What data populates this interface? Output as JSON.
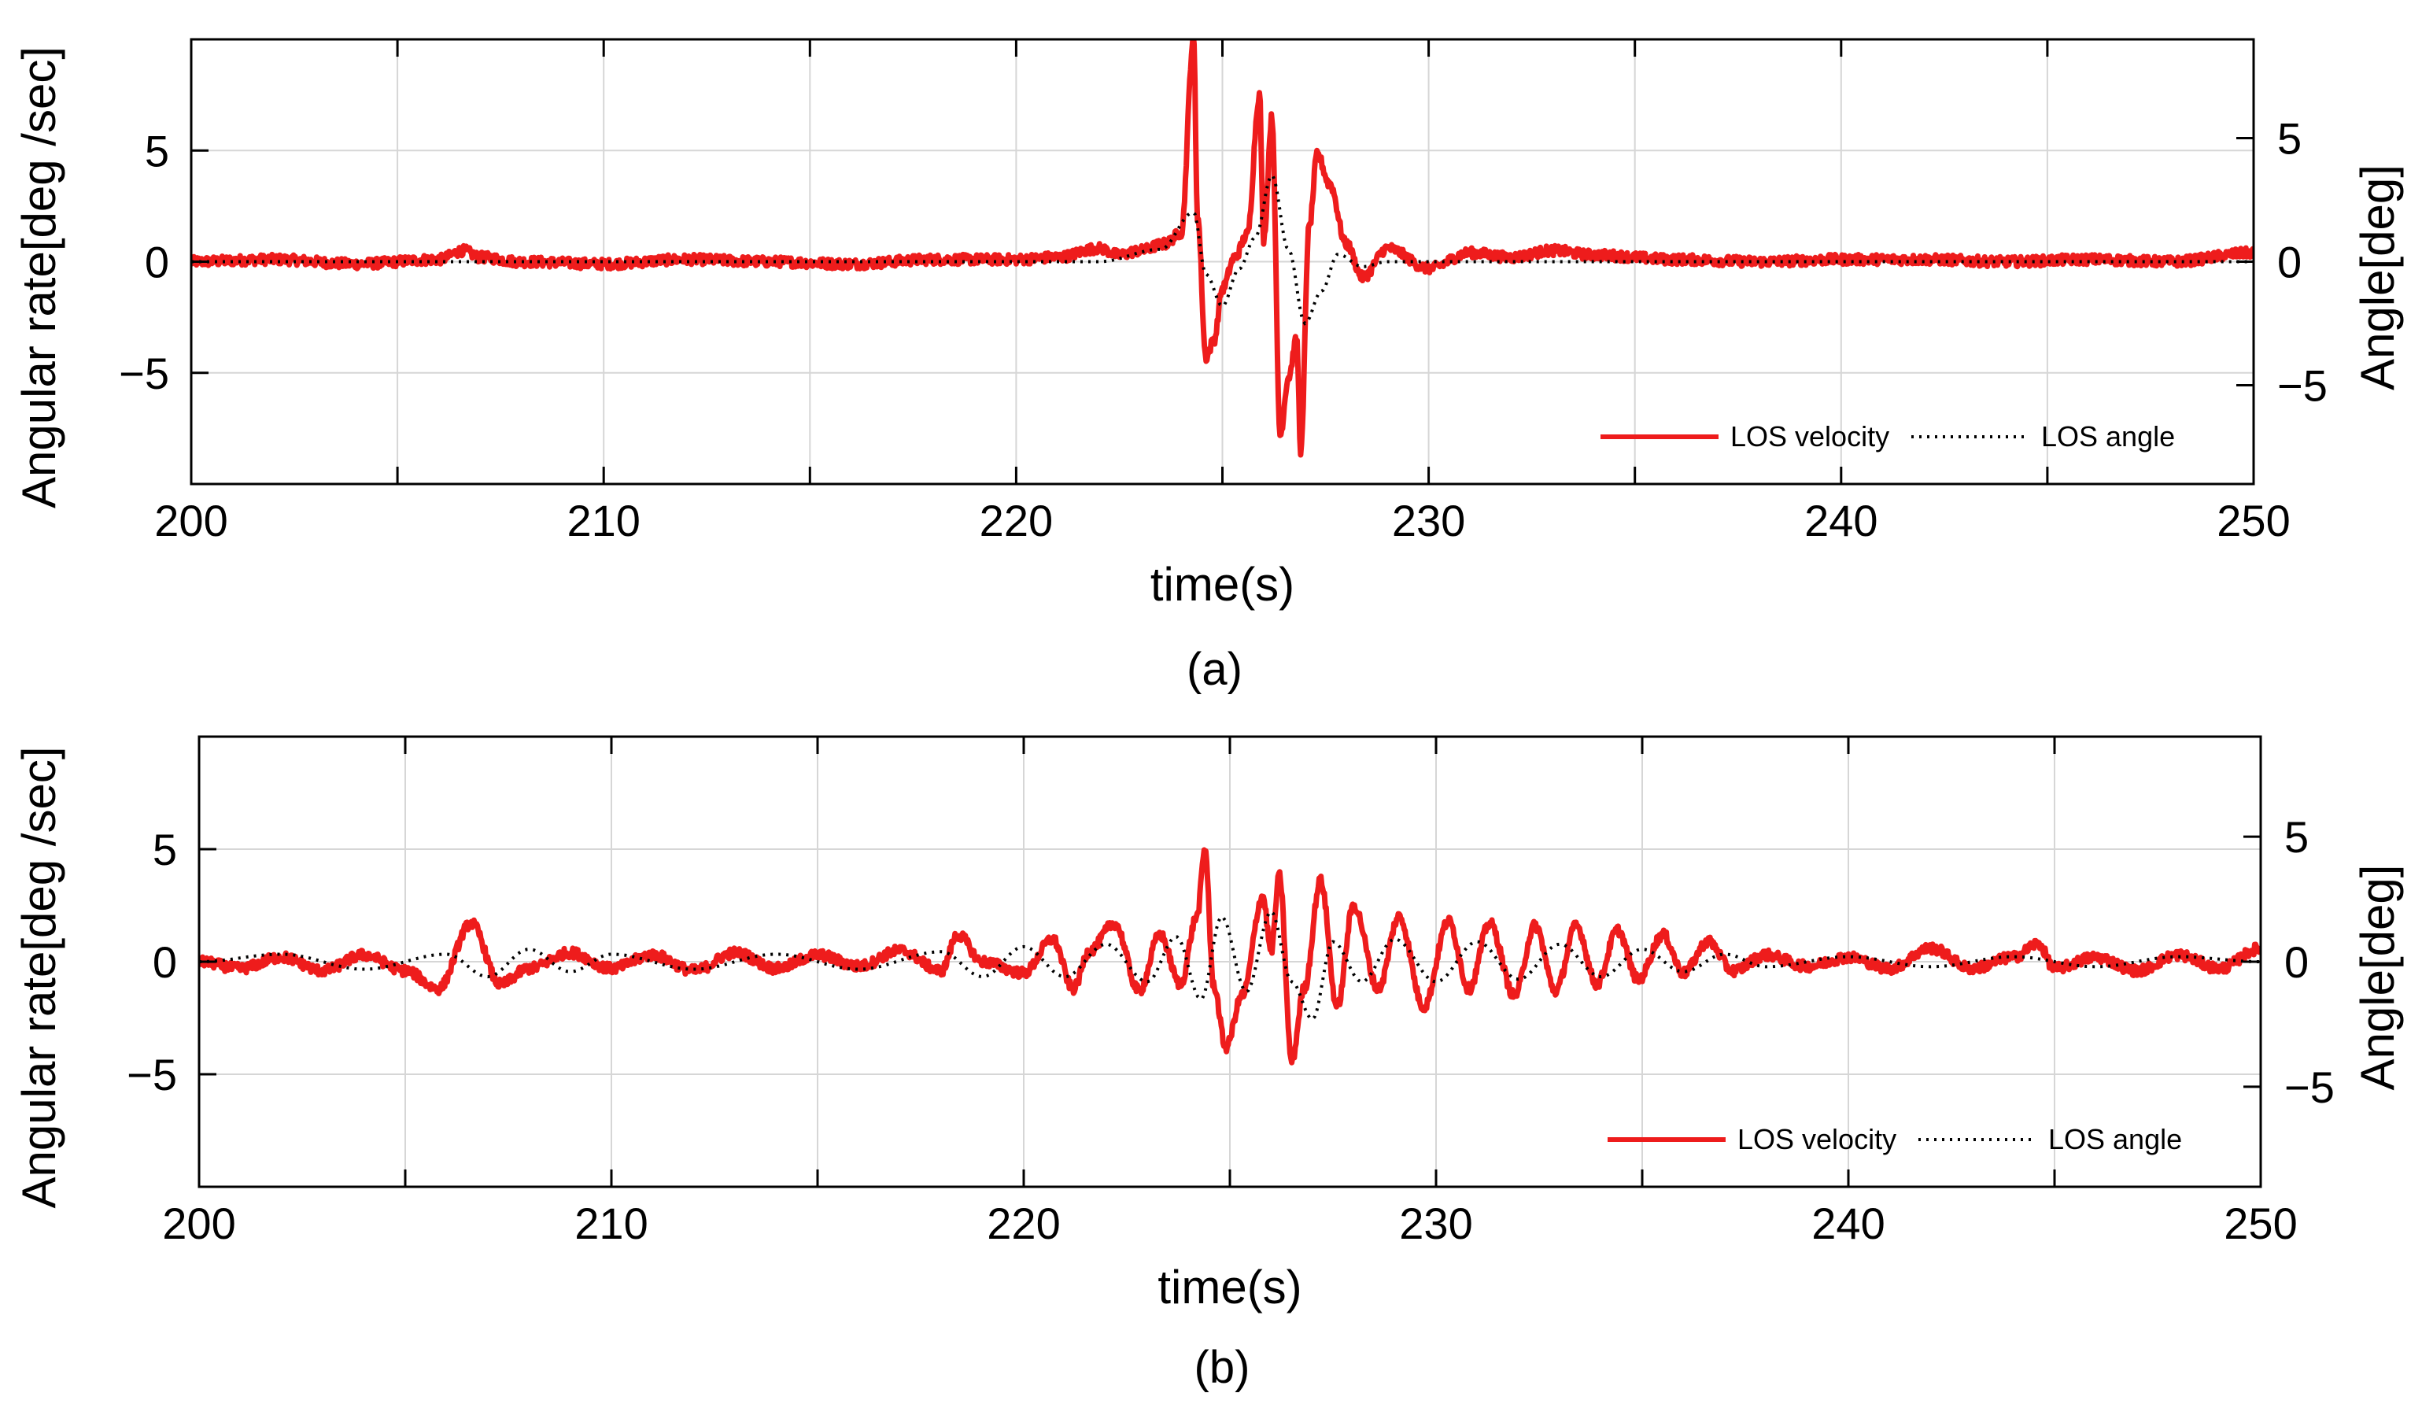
{
  "chart_data": [
    {
      "type": "line",
      "panel_label": "(a)",
      "xlabel": "time(s)",
      "ylabel_left": "Angular rate[deg /sec]",
      "ylabel_right": "Angle[deg]",
      "xlim": [
        200,
        250
      ],
      "ylim_left": [
        -10,
        10
      ],
      "ylim_right": [
        -9,
        9
      ],
      "xticks": [
        200,
        210,
        220,
        230,
        240,
        250
      ],
      "yticks_left": [
        -5,
        0,
        5
      ],
      "yticks_right": [
        -5,
        0,
        5
      ],
      "grid": true,
      "legend_position": "bottom-right",
      "series": [
        {
          "name": "LOS velocity",
          "axis": "left",
          "color": "#ee1c1c",
          "style": "solid",
          "x": [
            200,
            202,
            204,
            206,
            206.6,
            207,
            208,
            210,
            212,
            214,
            216,
            218,
            220,
            221,
            222,
            222.5,
            223,
            223.6,
            224.0,
            224.3,
            224.4,
            224.6,
            224.8,
            225.0,
            225.3,
            225.6,
            225.9,
            226.0,
            226.2,
            226.4,
            226.6,
            226.8,
            226.9,
            227.1,
            227.3,
            227.6,
            228.0,
            228.4,
            229,
            230,
            231,
            232,
            233,
            234,
            236,
            238,
            240,
            242,
            244,
            246,
            248,
            250
          ],
          "values": [
            0,
            0.1,
            -0.1,
            0.1,
            0.5,
            0.2,
            0,
            -0.1,
            0.1,
            0,
            -0.1,
            0.1,
            0.1,
            0.2,
            0.6,
            0.3,
            0.5,
            0.8,
            1.3,
            10,
            2,
            -4.3,
            -3.5,
            -1.2,
            0.2,
            1.2,
            7.5,
            1.0,
            6.5,
            -7.8,
            -5.2,
            -3.5,
            -8.5,
            1.5,
            4.8,
            3.5,
            0.8,
            -0.7,
            0.6,
            -0.3,
            0.4,
            0.2,
            0.5,
            0.3,
            0.1,
            0,
            0.1,
            0.1,
            0,
            0.1,
            0,
            0.4
          ]
        },
        {
          "name": "LOS angle",
          "axis": "right",
          "color": "#000000",
          "style": "dotted",
          "x": [
            200,
            222,
            223.5,
            224.3,
            224.6,
            225.0,
            225.4,
            225.8,
            226.2,
            226.6,
            227.0,
            227.4,
            227.8,
            228.4,
            229,
            250
          ],
          "values": [
            0,
            0,
            0.5,
            2.0,
            -0.5,
            -1.8,
            -0.3,
            1.0,
            3.5,
            0.5,
            -2.5,
            -1.2,
            0.3,
            -0.2,
            0,
            0
          ]
        }
      ]
    },
    {
      "type": "line",
      "panel_label": "(b)",
      "xlabel": "time(s)",
      "ylabel_left": "Angular rate[deg /sec]",
      "ylabel_right": "Angle[deg]",
      "xlim": [
        200,
        250
      ],
      "ylim_left": [
        -10,
        10
      ],
      "ylim_right": [
        -9,
        9
      ],
      "xticks": [
        200,
        210,
        220,
        230,
        240,
        250
      ],
      "yticks_left": [
        -5,
        0,
        5
      ],
      "yticks_right": [
        -5,
        0,
        5
      ],
      "grid": true,
      "legend_position": "bottom-right",
      "series": [
        {
          "name": "LOS velocity",
          "axis": "left",
          "color": "#ee1c1c",
          "style": "solid",
          "x": [
            200,
            201,
            202,
            203,
            204,
            205,
            205.8,
            206.6,
            207.3,
            208,
            209,
            210,
            211,
            212,
            213,
            214,
            215,
            216,
            217,
            218,
            218.4,
            219,
            220,
            220.7,
            221.2,
            221.6,
            222.2,
            222.8,
            223.3,
            223.8,
            224.2,
            224.4,
            224.6,
            224.9,
            225.3,
            225.8,
            226.0,
            226.2,
            226.5,
            226.8,
            227.2,
            227.6,
            228.0,
            228.6,
            229.1,
            229.7,
            230.3,
            230.8,
            231.3,
            231.9,
            232.4,
            232.9,
            233.4,
            233.9,
            234.4,
            234.9,
            235.5,
            236,
            236.6,
            237.2,
            238,
            239,
            240,
            241,
            242,
            243,
            244,
            244.6,
            245,
            246,
            247,
            248,
            249,
            250
          ],
          "values": [
            0,
            -0.3,
            0.2,
            -0.4,
            0.3,
            -0.4,
            -1.2,
            1.7,
            -1.0,
            -0.3,
            0.4,
            -0.3,
            0.3,
            -0.4,
            0.4,
            -0.3,
            0.3,
            -0.2,
            0.5,
            -0.4,
            1.2,
            0,
            -0.5,
            1.0,
            -1.2,
            0.5,
            1.7,
            -1.3,
            1.2,
            -1.0,
            2.0,
            5.0,
            -1.0,
            -3.8,
            -1.5,
            2.9,
            0.5,
            3.8,
            -4.4,
            -1.2,
            3.6,
            -2.0,
            2.5,
            -1.2,
            2.0,
            -2.0,
            1.8,
            -1.2,
            1.7,
            -1.5,
            1.6,
            -1.3,
            1.6,
            -1.0,
            1.4,
            -0.8,
            1.2,
            -0.5,
            0.9,
            -0.4,
            0.3,
            -0.2,
            0.2,
            -0.3,
            0.6,
            -0.3,
            0.2,
            0.8,
            -0.3,
            0.2,
            -0.4,
            0.3,
            -0.3,
            0.6
          ]
        },
        {
          "name": "LOS angle",
          "axis": "right",
          "color": "#000000",
          "style": "dotted",
          "x": [
            200,
            202,
            204,
            206,
            207,
            208,
            209,
            210,
            212,
            214,
            216,
            218,
            219,
            220,
            221,
            222,
            223,
            223.7,
            224.3,
            224.8,
            225.4,
            226.0,
            226.5,
            227.0,
            227.5,
            228.2,
            229,
            230,
            231,
            232,
            233,
            234,
            235,
            236,
            237,
            238,
            240,
            242,
            244,
            246,
            248,
            250
          ],
          "values": [
            0,
            0.3,
            -0.3,
            0.3,
            -0.6,
            0.5,
            -0.4,
            0.3,
            -0.3,
            0.3,
            -0.3,
            0.4,
            -0.6,
            0.6,
            -0.6,
            0.7,
            -0.8,
            1.0,
            -1.5,
            1.8,
            -1.2,
            2.0,
            -0.8,
            -2.3,
            0.8,
            -0.8,
            0.9,
            -0.8,
            0.8,
            -0.7,
            0.7,
            -0.6,
            0.5,
            -0.4,
            0.3,
            -0.2,
            0.2,
            -0.2,
            0.2,
            -0.2,
            0.2,
            0
          ]
        }
      ]
    }
  ]
}
